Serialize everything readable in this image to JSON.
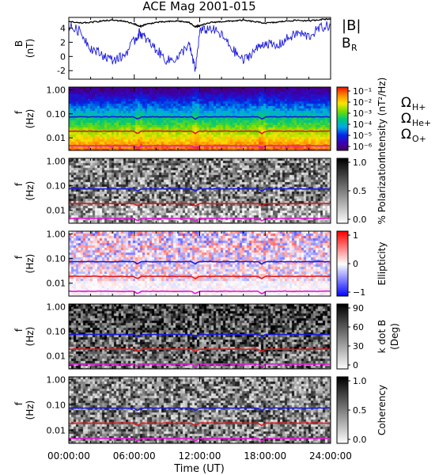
{
  "chart_data": {
    "type": "line",
    "title": "ACE Mag 2001-015",
    "x_axis": {
      "label": "Time (UT)",
      "ticks": [
        "00:00:00",
        "06:00:00",
        "12:00:00",
        "18:00:00",
        "24:00:00"
      ],
      "range_hours": [
        0,
        24
      ]
    },
    "panels": [
      {
        "id": "field",
        "type": "line",
        "ylabel": "B",
        "yunit": "(nT)",
        "ylim": [
          -3.2,
          5.5
        ],
        "yticks": [
          "-2",
          "0",
          "2",
          "4"
        ],
        "legend": [
          "|B|",
          "B_R"
        ],
        "series": [
          {
            "name": "|B|",
            "color": "#000000",
            "x": [
              0,
              1,
              2,
              3,
              4,
              5,
              6,
              6.5,
              7,
              8,
              9,
              10,
              11,
              11.6,
              12,
              13,
              14,
              15,
              16,
              17,
              18,
              19,
              20,
              21,
              22,
              23,
              24
            ],
            "y": [
              4.9,
              4.7,
              4.8,
              5.0,
              5.1,
              5.0,
              4.6,
              4.2,
              4.5,
              4.8,
              4.9,
              5.0,
              4.8,
              4.2,
              4.3,
              4.8,
              4.9,
              5.0,
              5.1,
              4.9,
              4.7,
              4.8,
              5.0,
              5.1,
              5.0,
              5.2,
              5.3
            ]
          },
          {
            "name": "B_R",
            "color": "#1a1adc",
            "x": [
              0,
              1,
              2,
              3,
              4,
              5,
              6,
              6.5,
              7,
              8,
              9,
              10,
              11,
              11.6,
              12,
              13,
              14,
              15,
              16,
              17,
              18,
              19,
              20,
              21,
              22,
              23,
              24
            ],
            "y": [
              4.2,
              3.6,
              1.2,
              0.3,
              -0.5,
              0.0,
              2.2,
              3.4,
              2.6,
              1.0,
              -0.6,
              -0.2,
              1.8,
              -2.0,
              3.5,
              4.0,
              3.0,
              1.0,
              -0.6,
              0.8,
              2.0,
              1.3,
              2.5,
              3.3,
              2.8,
              4.0,
              4.4
            ]
          }
        ]
      },
      {
        "id": "intensity",
        "type": "heatmap",
        "ylabel": "f",
        "yunit": "(Hz)",
        "yticks": [
          "1.00",
          "0.10",
          "0.01"
        ],
        "colorbar": {
          "label": "Intensity (nT²/Hz)",
          "ticks": [
            "10⁻¹",
            "10⁻²",
            "10⁻³",
            "10⁻⁴",
            "10⁻⁵",
            "10⁻⁶"
          ],
          "scheme": "rainbow"
        },
        "side_labels": [
          {
            "text": "Ω",
            "sub": "H+",
            "color": "#1a1adc"
          },
          {
            "text": "Ω",
            "sub": "He+",
            "color": "#e01b1b"
          },
          {
            "text": "Ω",
            "sub": "O+",
            "color": "#e11ad6"
          }
        ]
      },
      {
        "id": "polarization",
        "type": "heatmap",
        "ylabel": "f",
        "yunit": "(Hz)",
        "yticks": [
          "1.00",
          "0.10",
          "0.01"
        ],
        "colorbar": {
          "label": "% Polarization",
          "ticks": [
            "1.0",
            "0.5",
            "0.0"
          ],
          "scheme": "gray"
        }
      },
      {
        "id": "ellipticity",
        "type": "heatmap",
        "ylabel": "f",
        "yunit": "(Hz)",
        "yticks": [
          "1.00",
          "0.10",
          "0.01"
        ],
        "colorbar": {
          "label": "Ellipticity",
          "ticks": [
            "1",
            "0",
            "−1"
          ],
          "scheme": "bluewhitered"
        }
      },
      {
        "id": "kdotb",
        "type": "heatmap",
        "ylabel": "f",
        "yunit": "(Hz)",
        "yticks": [
          "1.00",
          "0.10",
          "0.01"
        ],
        "colorbar": {
          "label": "k dot B",
          "unit": "(Deg)",
          "ticks": [
            "90",
            "60",
            "30",
            "0"
          ],
          "scheme": "gray"
        }
      },
      {
        "id": "coherency",
        "type": "heatmap",
        "ylabel": "f",
        "yunit": "(Hz)",
        "yticks": [
          "1.00",
          "0.10",
          "0.01"
        ],
        "colorbar": {
          "label": "Coherency",
          "ticks": [
            "1.0",
            "0.5",
            "0.0"
          ],
          "scheme": "gray"
        }
      }
    ],
    "gyrofrequency_lines": [
      {
        "name": "ΩH+",
        "color": "#1a1adc",
        "freq_hz": 0.075
      },
      {
        "name": "ΩHe+",
        "color": "#e01b1b",
        "freq_hz": 0.019
      },
      {
        "name": "ΩO+",
        "color": "#e11ad6",
        "freq_hz": 0.0047
      }
    ],
    "gyrofrequency_dips_hours": [
      6.3,
      11.6,
      17.7
    ]
  }
}
